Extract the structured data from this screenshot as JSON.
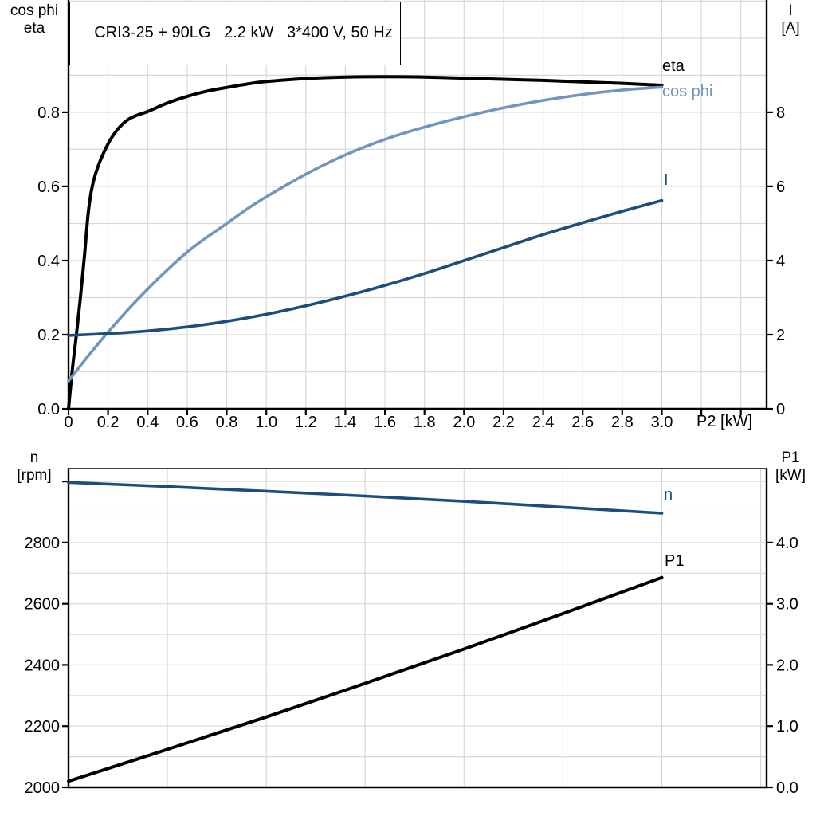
{
  "colors": {
    "grid": "#d8d8d8",
    "axis": "#000000",
    "background": "#ffffff",
    "light_blue": "#7295bf",
    "dark_blue": "#1b4d7e",
    "black": "#000000"
  },
  "chart_data": [
    {
      "id": "top",
      "type": "line",
      "title": "CRI3-25 + 90LG   2.2 kW   3*400 V, 50 Hz",
      "x_axis": {
        "label": "P2 [kW]",
        "min": 0,
        "max": 3.53,
        "grid_step": 0.2,
        "tick_values": [
          0,
          0.2,
          0.4,
          0.6,
          0.8,
          1.0,
          1.2,
          1.4,
          1.6,
          1.8,
          2.0,
          2.2,
          2.4,
          2.6,
          2.8,
          3.0,
          3.2,
          3.4
        ],
        "tick_labels": [
          "0",
          "0.2",
          "0.4",
          "0.6",
          "0.8",
          "1.0",
          "1.2",
          "1.4",
          "1.6",
          "1.8",
          "2.0",
          "2.2",
          "2.4",
          "2.6",
          "2.8",
          "3.0",
          "",
          ""
        ]
      },
      "y_left": {
        "label_lines": [
          "cos phi",
          "eta"
        ],
        "min": 0,
        "max": 1.103,
        "grid_step": 0.1,
        "tick_values": [
          0,
          0.2,
          0.4,
          0.6,
          0.8
        ],
        "tick_labels": [
          "0.0",
          "0.2",
          "0.4",
          "0.6",
          "0.8"
        ]
      },
      "y_right": {
        "label_lines": [
          "I",
          "[A]"
        ],
        "min": 0,
        "max": 11.03,
        "tick_values": [
          0,
          2,
          4,
          6,
          8
        ],
        "tick_labels": [
          "0",
          "2",
          "4",
          "6",
          "8"
        ]
      },
      "series": [
        {
          "name": "eta",
          "axis": "left",
          "color": "#000000",
          "stroke_width": 4,
          "x": [
            0,
            0.02,
            0.04,
            0.06,
            0.08,
            0.1,
            0.12,
            0.15,
            0.2,
            0.25,
            0.3,
            0.35,
            0.4,
            0.5,
            0.6,
            0.7,
            0.8,
            0.9,
            1.0,
            1.2,
            1.4,
            1.6,
            1.8,
            2.0,
            2.2,
            2.4,
            2.6,
            2.8,
            3.0
          ],
          "y": [
            0,
            0.11,
            0.2,
            0.3,
            0.41,
            0.53,
            0.6,
            0.655,
            0.715,
            0.755,
            0.78,
            0.793,
            0.802,
            0.825,
            0.843,
            0.857,
            0.867,
            0.876,
            0.883,
            0.891,
            0.895,
            0.896,
            0.895,
            0.892,
            0.889,
            0.886,
            0.882,
            0.878,
            0.873
          ]
        },
        {
          "name": "cos phi",
          "axis": "left",
          "color": "#7295bf",
          "stroke_width": 3.6,
          "x": [
            0,
            0.1,
            0.2,
            0.3,
            0.4,
            0.5,
            0.6,
            0.7,
            0.8,
            0.9,
            1.0,
            1.2,
            1.4,
            1.6,
            1.8,
            2.0,
            2.2,
            2.4,
            2.6,
            2.8,
            3.0
          ],
          "y": [
            0.075,
            0.143,
            0.207,
            0.267,
            0.323,
            0.375,
            0.423,
            0.463,
            0.5,
            0.538,
            0.572,
            0.633,
            0.685,
            0.727,
            0.76,
            0.788,
            0.812,
            0.832,
            0.848,
            0.86,
            0.868
          ]
        },
        {
          "name": "I",
          "axis": "right",
          "color": "#1b4d7e",
          "stroke_width": 3.6,
          "x": [
            0,
            0.2,
            0.4,
            0.6,
            0.8,
            1.0,
            1.2,
            1.4,
            1.6,
            1.8,
            2.0,
            2.2,
            2.4,
            2.6,
            2.8,
            3.0
          ],
          "y": [
            1.98,
            2.03,
            2.1,
            2.21,
            2.36,
            2.55,
            2.78,
            3.04,
            3.33,
            3.65,
            4.0,
            4.35,
            4.7,
            5.02,
            5.33,
            5.62
          ]
        }
      ]
    },
    {
      "id": "bottom",
      "type": "line",
      "title": "",
      "x_axis": {
        "label": "",
        "min": 0,
        "max": 3.53,
        "grid_step": 0.5,
        "tick_values": [],
        "tick_labels": []
      },
      "y_left": {
        "label_lines": [
          "n",
          "[rpm]"
        ],
        "min": 2000,
        "max": 3042,
        "grid_step": 100,
        "tick_values": [
          2000,
          2200,
          2400,
          2600,
          2800,
          3000
        ],
        "tick_labels": [
          "2000",
          "2200",
          "2400",
          "2600",
          "2800",
          ""
        ]
      },
      "y_right": {
        "label_lines": [
          "P1",
          "[kW]"
        ],
        "min": 0,
        "max": 5.21,
        "tick_values": [
          0,
          1,
          2,
          3,
          4
        ],
        "tick_labels": [
          "0.0",
          "1.0",
          "2.0",
          "3.0",
          "4.0"
        ]
      },
      "series": [
        {
          "name": "n",
          "axis": "left",
          "color": "#1b4d7e",
          "stroke_width": 3.6,
          "x": [
            0,
            0.5,
            1.0,
            1.5,
            2.0,
            2.5,
            3.0
          ],
          "y": [
            2997,
            2983,
            2968,
            2952,
            2935,
            2916,
            2896
          ]
        },
        {
          "name": "P1",
          "axis": "right",
          "color": "#000000",
          "stroke_width": 4,
          "x": [
            0,
            0.5,
            1.0,
            1.5,
            2.0,
            2.5,
            3.0
          ],
          "y": [
            0.1,
            0.62,
            1.15,
            1.7,
            2.26,
            2.84,
            3.43
          ]
        }
      ]
    }
  ]
}
